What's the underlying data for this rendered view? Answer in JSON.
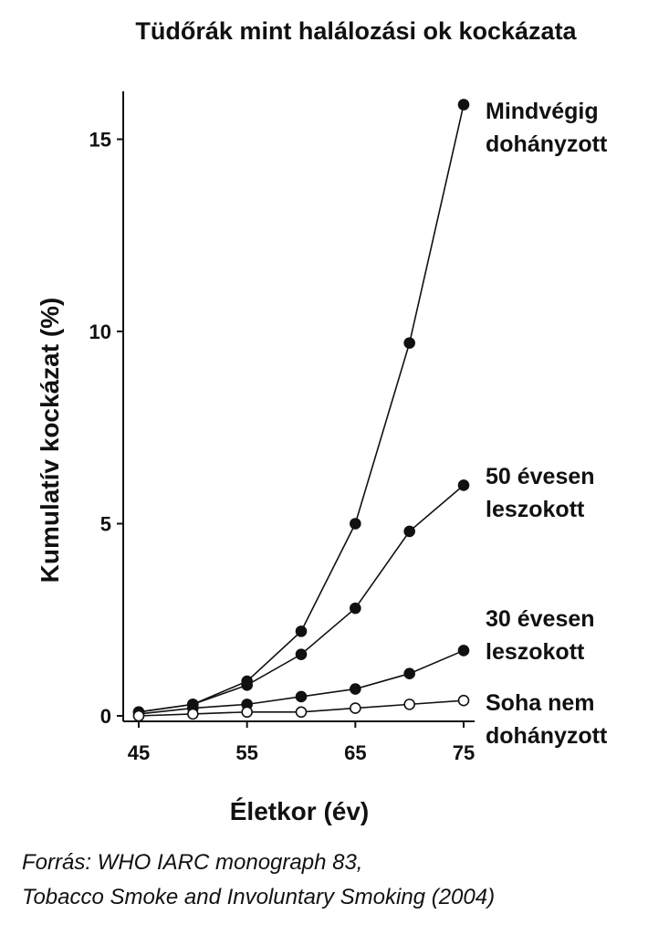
{
  "chart_data": {
    "type": "line",
    "title": "Tüdőrák mint halálozási ok kockázata",
    "xlabel": "Életkor (év)",
    "ylabel": "Kumulatív kockázat (%)",
    "xlim": [
      45,
      75
    ],
    "ylim": [
      0,
      16
    ],
    "xticks": [
      45,
      55,
      65,
      75
    ],
    "yticks": [
      0,
      5,
      10,
      15
    ],
    "grid": false,
    "x": [
      45,
      50,
      55,
      60,
      65,
      70,
      75
    ],
    "series": [
      {
        "name": [
          "Mindvégig",
          "dohányzott"
        ],
        "marker": "filled",
        "values": [
          0.1,
          0.3,
          0.9,
          2.2,
          5.0,
          9.7,
          15.9
        ]
      },
      {
        "name": [
          "50 évesen",
          "leszokott"
        ],
        "marker": "filled",
        "values": [
          0.1,
          0.3,
          0.8,
          1.6,
          2.8,
          4.8,
          6.0
        ]
      },
      {
        "name": [
          "30 évesen",
          "leszokott"
        ],
        "marker": "filled",
        "values": [
          0.05,
          0.2,
          0.3,
          0.5,
          0.7,
          1.1,
          1.7
        ]
      },
      {
        "name": [
          "Soha nem",
          "dohányzott"
        ],
        "marker": "open",
        "values": [
          0.0,
          0.05,
          0.1,
          0.1,
          0.2,
          0.3,
          0.4
        ]
      }
    ]
  },
  "source": {
    "line1": "Forrás: WHO IARC monograph 83,",
    "line2": "Tobacco Smoke and Involuntary Smoking (2004)"
  }
}
